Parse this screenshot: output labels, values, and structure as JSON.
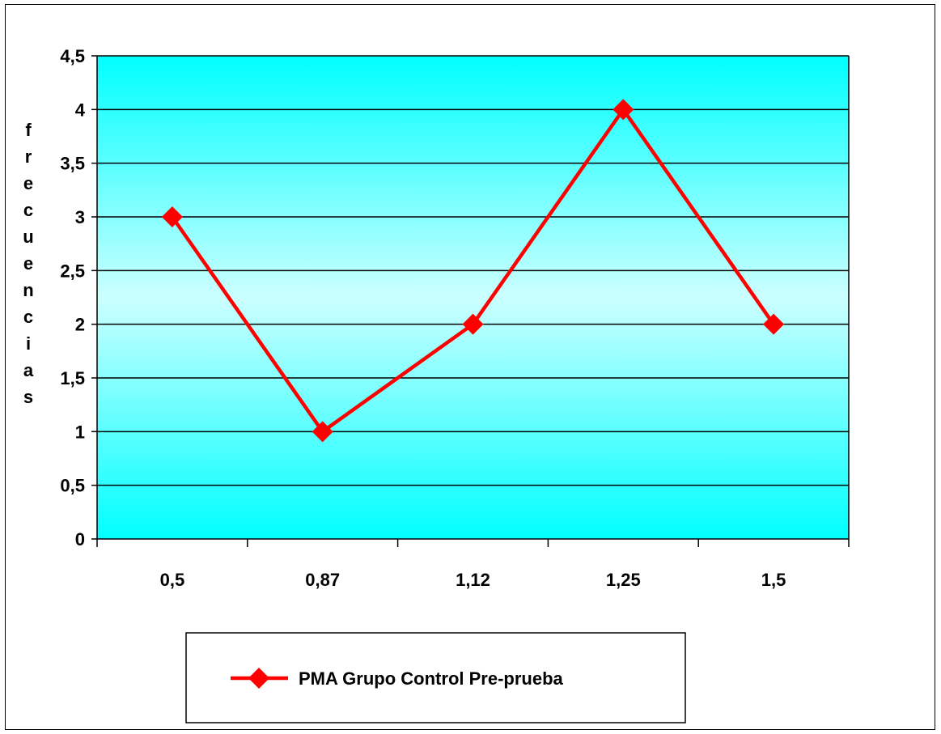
{
  "chart_data": {
    "type": "line",
    "title": "",
    "xlabel": "",
    "ylabel": "frecuencias",
    "categories": [
      "0,5",
      "0,87",
      "1,12",
      "1,25",
      "1,5"
    ],
    "series": [
      {
        "name": "PMA Grupo Control Pre-prueba",
        "values": [
          3,
          1,
          2,
          4,
          2
        ],
        "color": "#ff0000",
        "marker": "diamond"
      }
    ],
    "ylim": [
      0,
      4.5
    ],
    "yticks": [
      0,
      0.5,
      1,
      1.5,
      2,
      2.5,
      3,
      3.5,
      4,
      4.5
    ],
    "ytick_labels": [
      "0",
      "0,5",
      "1",
      "1,5",
      "2",
      "2,5",
      "3",
      "3,5",
      "4",
      "4,5"
    ],
    "grid": true,
    "legend_position": "bottom",
    "plot_background": {
      "edge_color": "#00ffff",
      "center_color": "#ccffff"
    }
  }
}
